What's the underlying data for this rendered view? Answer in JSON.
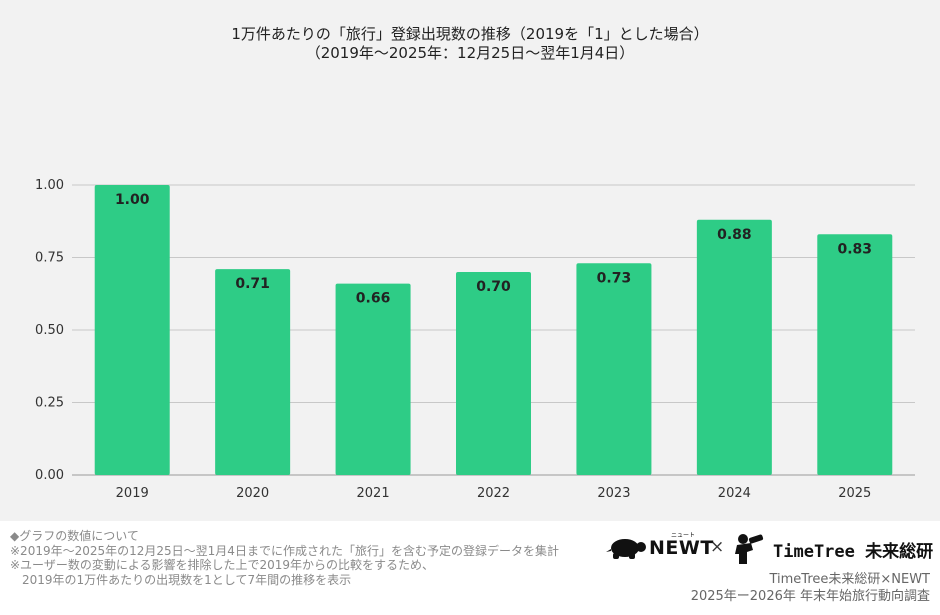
{
  "chart_data": {
    "type": "bar",
    "title": "1万件あたりの「旅行」登録出現数の推移（2019を「1」とした場合）",
    "subtitle": "（2019年〜2025年：12月25日〜翌年1月4日）",
    "categories": [
      "2019",
      "2020",
      "2021",
      "2022",
      "2023",
      "2024",
      "2025"
    ],
    "values": [
      1.0,
      0.71,
      0.66,
      0.7,
      0.73,
      0.88,
      0.83
    ],
    "value_labels": [
      "1.00",
      "0.71",
      "0.66",
      "0.70",
      "0.73",
      "0.88",
      "0.83"
    ],
    "y_ticks": [
      "0.00",
      "0.25",
      "0.50",
      "0.75",
      "1.00"
    ],
    "ylim": [
      0,
      1.0
    ],
    "grid": true,
    "bar_color": "#2ecc86",
    "xlabel": "",
    "ylabel": ""
  },
  "footer": {
    "notes": [
      "◆グラフの数値について",
      "※2019年〜2025年の12月25日〜翌1月4日までに作成された「旅行」を含む予定の登録データを集計",
      "※ユーザー数の変動による影響を排除した上で2019年からの比較をするため、",
      "2019年の1万件あたりの出現数を1として7年間の推移を表示"
    ],
    "logos": {
      "newt": "NEWT",
      "newt_small": "ニュート",
      "times": "×",
      "timetree": "TimeTree 未来総研",
      "newt_icon": "turtle-icon",
      "timetree_icon": "person-binoculars-icon"
    },
    "credits": [
      "TimeTree未来総研×NEWT",
      "2025年ー2026年 年末年始旅行動向調査"
    ]
  }
}
